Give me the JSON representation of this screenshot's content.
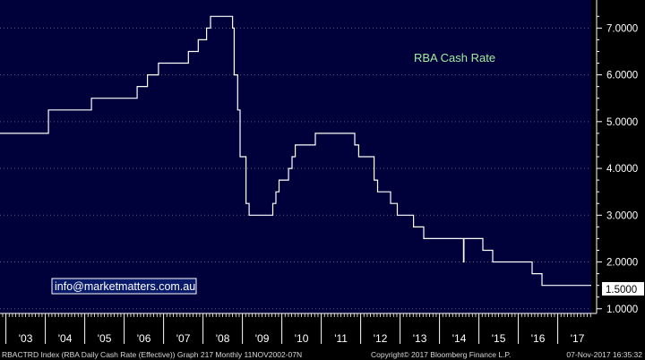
{
  "colors": {
    "plot_bg": "#00003a",
    "series": "#ffffff",
    "grid": "#5a5a7a",
    "axis_text": "#ffffff",
    "label_green": "#9ff09f",
    "email_bg": "#0a1a6a",
    "email_border": "#ffffff",
    "last_value_bg": "#ffffff",
    "last_value_text": "#000000",
    "footer_text": "#d8d8d8"
  },
  "chart_data": {
    "type": "line",
    "step": true,
    "series_label": "RBA Cash Rate",
    "y_ticks": [
      "1.0000",
      "2.0000",
      "3.0000",
      "4.0000",
      "5.0000",
      "6.0000",
      "7.0000"
    ],
    "ylim": [
      0.9,
      7.6
    ],
    "x_ticks": [
      "'03",
      "'04",
      "'05",
      "'06",
      "'07",
      "'08",
      "'09",
      "'10",
      "'11",
      "'12",
      "'13",
      "'14",
      "'15",
      "'16",
      "'17"
    ],
    "xlim": [
      2002.85,
      2017.85
    ],
    "grid": true,
    "last_value": "1.5000",
    "points": [
      [
        2002.85,
        4.75
      ],
      [
        2003.0,
        4.75
      ],
      [
        2003.98,
        4.75
      ],
      [
        2004.08,
        5.25
      ],
      [
        2005.17,
        5.5
      ],
      [
        2006.33,
        5.75
      ],
      [
        2006.59,
        6.0
      ],
      [
        2006.87,
        6.25
      ],
      [
        2007.63,
        6.5
      ],
      [
        2007.88,
        6.75
      ],
      [
        2008.09,
        7.0
      ],
      [
        2008.19,
        7.25
      ],
      [
        2008.75,
        7.0
      ],
      [
        2008.79,
        6.0
      ],
      [
        2008.88,
        5.25
      ],
      [
        2008.94,
        4.25
      ],
      [
        2009.09,
        3.25
      ],
      [
        2009.17,
        3.0
      ],
      [
        2009.77,
        3.25
      ],
      [
        2009.85,
        3.5
      ],
      [
        2009.93,
        3.75
      ],
      [
        2010.17,
        4.0
      ],
      [
        2010.26,
        4.25
      ],
      [
        2010.34,
        4.5
      ],
      [
        2010.85,
        4.75
      ],
      [
        2011.85,
        4.5
      ],
      [
        2011.95,
        4.25
      ],
      [
        2012.34,
        3.75
      ],
      [
        2012.43,
        3.5
      ],
      [
        2012.76,
        3.25
      ],
      [
        2012.93,
        3.0
      ],
      [
        2013.34,
        2.75
      ],
      [
        2013.6,
        2.5
      ],
      [
        2014.6,
        2.5
      ],
      [
        2014.61,
        2.0
      ],
      [
        2014.62,
        2.5
      ],
      [
        2015.1,
        2.25
      ],
      [
        2015.35,
        2.0
      ],
      [
        2016.35,
        1.75
      ],
      [
        2016.6,
        1.5
      ],
      [
        2017.85,
        1.5
      ]
    ]
  },
  "annotations": {
    "email": "info@marketmatters.com.au"
  },
  "footer": {
    "left": "RBACTRD Index (RBA Daily Cash Rate (Effective)) Graph 217  Monthly 11NOV2002-07N",
    "center": "Copyright© 2017 Bloomberg Finance L.P.",
    "right": "07-Nov-2017 16:35:32"
  }
}
